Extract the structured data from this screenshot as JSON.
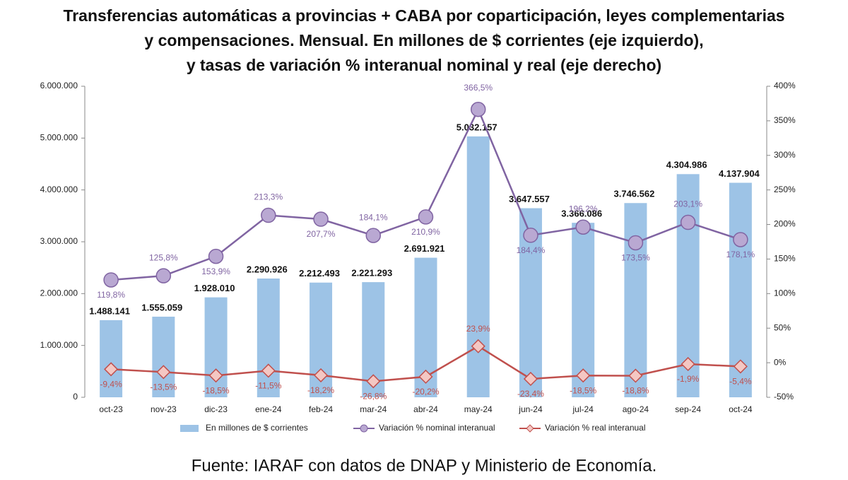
{
  "chart_data": {
    "type": "combo",
    "title": [
      "Transferencias automáticas a provincias + CABA por coparticipación, leyes complementarias",
      "y compensaciones. Mensual. En millones de $ corrientes (eje izquierdo),",
      "y tasas de variación % interanual nominal y real (eje derecho)"
    ],
    "source": "Fuente: IARAF con datos de DNAP y Ministerio de Economía.",
    "categories": [
      "oct-23",
      "nov-23",
      "dic-23",
      "ene-24",
      "feb-24",
      "mar-24",
      "abr-24",
      "may-24",
      "jun-24",
      "jul-24",
      "ago-24",
      "sep-24",
      "oct-24"
    ],
    "series": [
      {
        "name": "En millones de $ corrientes",
        "type": "bar",
        "axis": "y",
        "color": "#9dc3e6",
        "values": [
          1488141,
          1555059,
          1928010,
          2290926,
          2212493,
          2221293,
          2691921,
          5032157,
          3647557,
          3366086,
          3746562,
          4304986,
          4137904
        ],
        "value_labels": [
          "1.488.141",
          "1.555.059",
          "1.928.010",
          "2.290.926",
          "2.212.493",
          "2.221.293",
          "2.691.921",
          "5.032.157",
          "3.647.557",
          "3.366.086",
          "3.746.562",
          "4.304.986",
          "4.137.904"
        ]
      },
      {
        "name": "Variación % nominal interanual",
        "type": "line",
        "axis": "y2",
        "color": "#8064a2",
        "marker_color": "#b9a8d2",
        "values": [
          119.8,
          125.8,
          153.9,
          213.3,
          207.7,
          184.1,
          210.9,
          366.5,
          184.4,
          196.2,
          173.5,
          203.1,
          178.1
        ],
        "value_labels": [
          "119,8%",
          "125,8%",
          "153,9%",
          "213,3%",
          "207,7%",
          "184,1%",
          "210,9%",
          "366,5%",
          "184,4%",
          "196,2%",
          "173,5%",
          "203,1%",
          "178,1%"
        ]
      },
      {
        "name": "Variación % real interanual",
        "type": "line",
        "axis": "y2",
        "color": "#c0504d",
        "marker_color": "#f4c7c3",
        "values": [
          -9.4,
          -13.5,
          -18.5,
          -11.5,
          -18.2,
          -26.8,
          -20.2,
          23.9,
          -23.4,
          -18.5,
          -18.8,
          -1.9,
          -5.4
        ],
        "value_labels": [
          "-9,4%",
          "-13,5%",
          "-18,5%",
          "-11,5%",
          "-18,2%",
          "-26,8%",
          "-20,2%",
          "23,9%",
          "-23,4%",
          "-18,5%",
          "-18,8%",
          "-1,9%",
          "-5,4%"
        ]
      }
    ],
    "ylim": [
      0,
      6000000
    ],
    "yticks": [
      0,
      {
        "value": 1000000,
        "label": "1.000.000"
      },
      {
        "value": 2000000,
        "label": "2.000.000"
      },
      {
        "value": 3000000,
        "label": "3.000.000"
      },
      {
        "value": 4000000,
        "label": "4.000.000"
      },
      {
        "value": 5000000,
        "label": "5.000.000"
      },
      {
        "value": 6000000,
        "label": "6.000.000"
      }
    ],
    "y2lim": [
      -50,
      400
    ],
    "y2ticks": [
      {
        "value": -50,
        "label": "-50%"
      },
      {
        "value": 0,
        "label": "0%"
      },
      {
        "value": 50,
        "label": "50%"
      },
      {
        "value": 100,
        "label": "100%"
      },
      {
        "value": 150,
        "label": "150%"
      },
      {
        "value": 200,
        "label": "200%"
      },
      {
        "value": 250,
        "label": "250%"
      },
      {
        "value": 300,
        "label": "300%"
      },
      {
        "value": 350,
        "label": "350%"
      },
      {
        "value": 400,
        "label": "400%"
      }
    ],
    "legend": "bottom"
  }
}
